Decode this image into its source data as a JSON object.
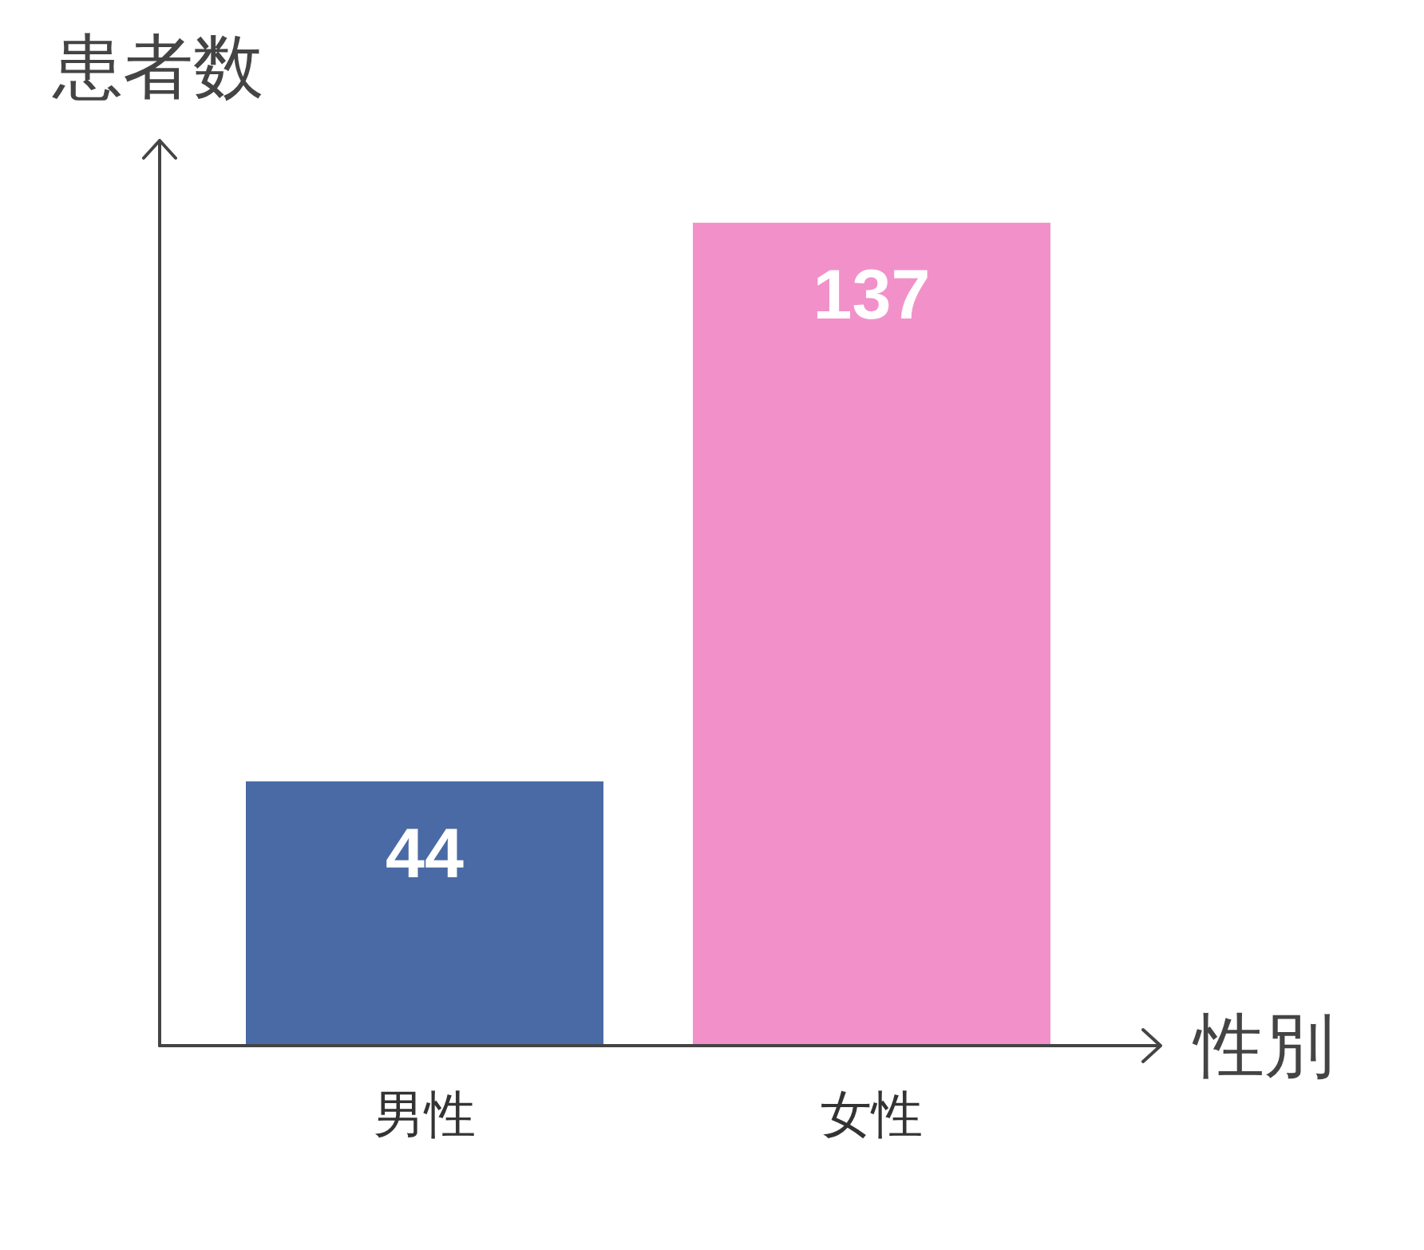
{
  "chart_data": {
    "type": "bar",
    "ylabel": "患者数",
    "xlabel": "性別",
    "categories": [
      "男性",
      "女性"
    ],
    "values": [
      44,
      137
    ],
    "colors": [
      "#4a6aa5",
      "#f291c9"
    ],
    "data_labels": true,
    "tick_labels": "x"
  }
}
